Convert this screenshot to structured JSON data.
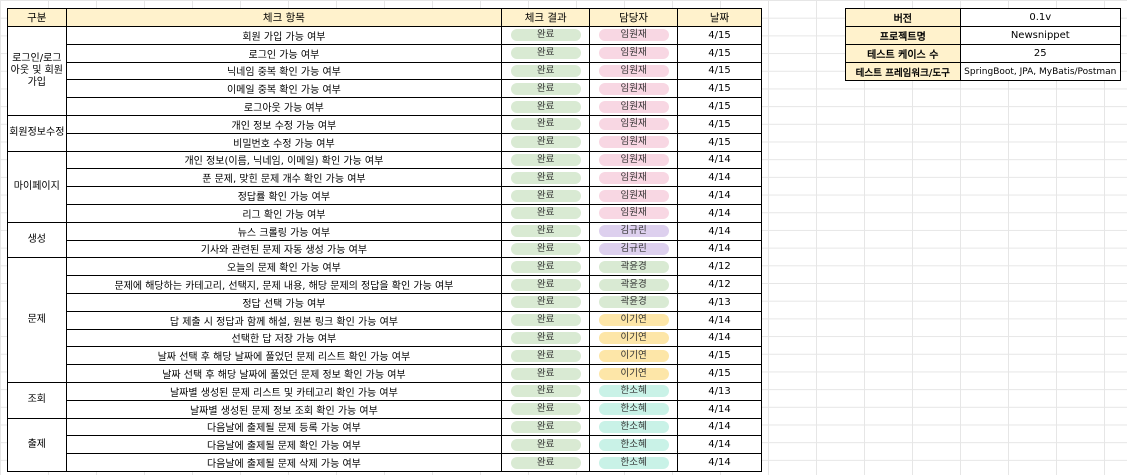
{
  "main_table": {
    "headers": [
      "구분",
      "체크 항목",
      "체크 결과",
      "담당자",
      "날짜"
    ],
    "groups": [
      {
        "category": "로그인/로그아웃 및 회원가입",
        "rows": [
          {
            "item": "회원 가입 가능 여부",
            "result": "완료",
            "owner": "임원재",
            "date": "4/15"
          },
          {
            "item": "로그인 가능 여부",
            "result": "완료",
            "owner": "임원재",
            "date": "4/15"
          },
          {
            "item": "닉네임 중복 확인 가능 여부",
            "result": "완료",
            "owner": "임원재",
            "date": "4/15"
          },
          {
            "item": "이메일 중복 확인 가능 여부",
            "result": "완료",
            "owner": "임원재",
            "date": "4/15"
          },
          {
            "item": "로그아웃 가능 여부",
            "result": "완료",
            "owner": "임원재",
            "date": "4/15"
          }
        ]
      },
      {
        "category": "회원정보수정",
        "rows": [
          {
            "item": "개인 정보 수정 가능 여부",
            "result": "완료",
            "owner": "임원재",
            "date": "4/15"
          },
          {
            "item": "비밀번호 수정 가능 여부",
            "result": "완료",
            "owner": "임원재",
            "date": "4/15"
          }
        ]
      },
      {
        "category": "마이페이지",
        "rows": [
          {
            "item": "개인 정보(이름, 닉네임, 이메일) 확인 가능 여부",
            "result": "완료",
            "owner": "임원재",
            "date": "4/14"
          },
          {
            "item": "푼 문제, 맞힌 문제 개수 확인 가능 여부",
            "result": "완료",
            "owner": "임원재",
            "date": "4/14"
          },
          {
            "item": "정답률 확인 가능 여부",
            "result": "완료",
            "owner": "임원재",
            "date": "4/14"
          },
          {
            "item": "리그 확인 가능 여부",
            "result": "완료",
            "owner": "임원재",
            "date": "4/14"
          }
        ]
      },
      {
        "category": "생성",
        "rows": [
          {
            "item": "뉴스 크롤링 가능 여부",
            "result": "완료",
            "owner": "김규린",
            "date": "4/14"
          },
          {
            "item": "기사와 관련된 문제 자동 생성 가능 여부",
            "result": "완료",
            "owner": "김규린",
            "date": "4/14"
          }
        ]
      },
      {
        "category": "문제",
        "rows": [
          {
            "item": "오늘의 문제 확인 가능 여부",
            "result": "완료",
            "owner": "곽윤경",
            "date": "4/12"
          },
          {
            "item": "문제에 해당하는 카테고리, 선택지, 문제 내용, 해당 문제의 정답을 확인 가능 여부",
            "result": "완료",
            "owner": "곽윤경",
            "date": "4/12"
          },
          {
            "item": "정답 선택 가능 여부",
            "result": "완료",
            "owner": "곽윤경",
            "date": "4/13"
          },
          {
            "item": "답 제출 시 정답과 함께 해설, 원본 링크 확인 가능 여부",
            "result": "완료",
            "owner": "이기연",
            "date": "4/14"
          },
          {
            "item": "선택한 답 저장 가능 여부",
            "result": "완료",
            "owner": "이기연",
            "date": "4/14"
          },
          {
            "item": "날짜 선택 후 해당 날짜에 풀었던 문제 리스트 확인 가능 여부",
            "result": "완료",
            "owner": "이기연",
            "date": "4/15"
          },
          {
            "item": "날짜 선택 후 해당 날짜에 풀었던 문제 정보 확인 가능 여부",
            "result": "완료",
            "owner": "이기연",
            "date": "4/15"
          }
        ]
      },
      {
        "category": "조회",
        "rows": [
          {
            "item": "날짜별 생성된 문제 리스트 및 카테고리 확인 가능 여부",
            "result": "완료",
            "owner": "한소혜",
            "date": "4/13"
          },
          {
            "item": "날짜별 생성된 문제 정보 조회 확인 가능 여부",
            "result": "완료",
            "owner": "한소혜",
            "date": "4/14"
          }
        ]
      },
      {
        "category": "출제",
        "rows": [
          {
            "item": "다음날에 출제될 문제 등록 가능 여부",
            "result": "완료",
            "owner": "한소혜",
            "date": "4/14"
          },
          {
            "item": "다음날에 출제될 문제 확인 가능 여부",
            "result": "완료",
            "owner": "한소혜",
            "date": "4/14"
          },
          {
            "item": "다음날에 출제될 문제 삭제 가능 여부",
            "result": "완료",
            "owner": "한소혜",
            "date": "4/14"
          }
        ]
      }
    ]
  },
  "owner_colors": {
    "임원재": "#f8d7e3",
    "김규린": "#ddd0ee",
    "곽윤경": "#d9ead3",
    "이기연": "#fde6a8",
    "한소혜": "#c9f2e7"
  },
  "result_color": "#d9ead3",
  "header_color": "#fff2cc",
  "info_table": [
    {
      "key": "버전",
      "value": "0.1v"
    },
    {
      "key": "프로젝트명",
      "value": "Newsnippet"
    },
    {
      "key": "테스트 케이스 수",
      "value": "25"
    },
    {
      "key": "테스트 프레임워크/도구",
      "value": "SpringBoot, JPA, MyBatis/Postman"
    }
  ]
}
